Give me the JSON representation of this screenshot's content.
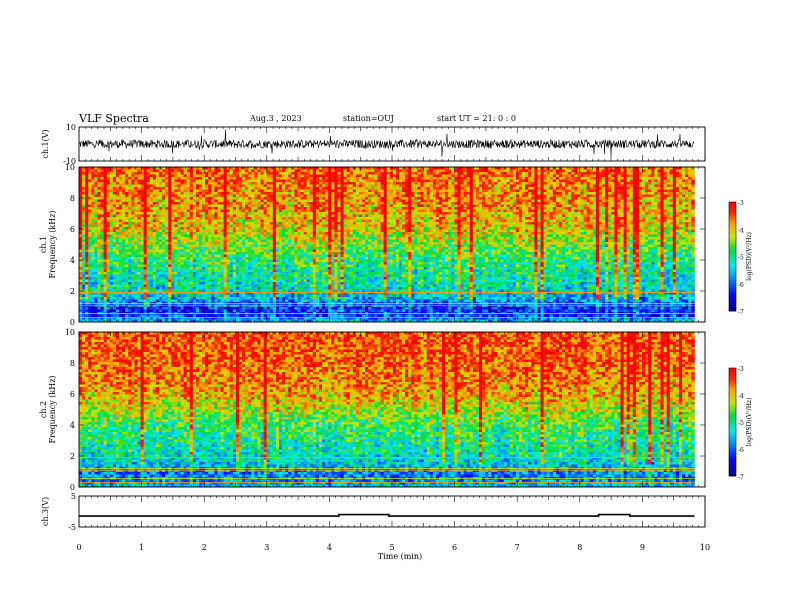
{
  "header": {
    "title": "VLF Spectra",
    "date": "Aug.3  , 2023",
    "station": "station=OUJ",
    "start_ut": "start  UT  =   21: 0  : 0"
  },
  "chart_data": [
    {
      "type": "line",
      "panel": "ch1-waveform",
      "ylabel": "ch.1(V)",
      "ylim": [
        -10,
        10
      ],
      "yticks": [
        "10",
        "-10"
      ],
      "xlim": [
        0,
        10
      ],
      "x": [
        0,
        0.5,
        1,
        1.5,
        2,
        2.5,
        3,
        3.5,
        4,
        4.5,
        5,
        5.5,
        6,
        6.5,
        7,
        7.5,
        8,
        8.5,
        9,
        9.5,
        9.83
      ],
      "values": [
        0,
        0,
        0,
        0,
        0,
        0,
        0,
        0,
        0,
        0,
        0,
        0,
        0,
        0,
        0,
        0,
        0,
        0,
        0,
        0,
        0
      ],
      "envelope": 2.5,
      "color": "#000000"
    },
    {
      "type": "heatmap",
      "panel": "ch1-spectrogram",
      "ylabel": "ch.1\nFrequency (kHz)",
      "xlim": [
        0,
        10
      ],
      "ylim": [
        0,
        10
      ],
      "yticks": [
        "0",
        "2",
        "4",
        "6",
        "8",
        "10"
      ],
      "data_end_min": 9.83,
      "colorbar": {
        "label": "log(PSD)(V²/Hz)",
        "range": [
          -7,
          -3
        ],
        "ticks": [
          "-3",
          "-4",
          "-5",
          "-6",
          "-7"
        ]
      },
      "profile_kHz": [
        0,
        0.5,
        1,
        1.5,
        2,
        3,
        4,
        5,
        6,
        7,
        8,
        9,
        10
      ],
      "profile_logPSD": [
        -5.5,
        -6.3,
        -6.2,
        -5.6,
        -5.3,
        -5.1,
        -4.9,
        -4.5,
        -4.1,
        -3.9,
        -3.8,
        -3.7,
        -3.6
      ]
    },
    {
      "type": "heatmap",
      "panel": "ch2-spectrogram",
      "ylabel": "ch.2\nFrequency (kHz)",
      "xlim": [
        0,
        10
      ],
      "ylim": [
        0,
        10
      ],
      "yticks": [
        "0",
        "2",
        "4",
        "6",
        "8",
        "10"
      ],
      "data_end_min": 9.83,
      "colorbar": {
        "label": "log(PSD)(V²/Hz)",
        "range": [
          -7,
          -3
        ],
        "ticks": [
          "-3",
          "-4",
          "-5",
          "-6",
          "-7"
        ]
      },
      "profile_kHz": [
        0,
        0.5,
        1,
        1.5,
        2,
        3,
        4,
        5,
        6,
        7,
        8,
        9,
        10
      ],
      "profile_logPSD": [
        -5.3,
        -5.9,
        -5.8,
        -5.4,
        -5.2,
        -5.0,
        -4.8,
        -4.3,
        -3.9,
        -3.7,
        -3.6,
        -3.5,
        -3.5
      ]
    },
    {
      "type": "line",
      "panel": "ch3-signal",
      "ylabel": "ch.3(V)",
      "ylim": [
        -5,
        5
      ],
      "yticks": [
        "5",
        "-5"
      ],
      "xlim": [
        0,
        10
      ],
      "xlabel": "Time  (min)",
      "xticks": [
        "0",
        "1",
        "2",
        "3",
        "4",
        "5",
        "6",
        "7",
        "8",
        "9",
        "10"
      ],
      "baseline_value": -1.5,
      "high_value": -1.0,
      "high_intervals": [
        [
          4.15,
          4.95
        ],
        [
          8.3,
          8.8
        ]
      ],
      "data_end_min": 9.83,
      "color": "#000000"
    }
  ],
  "colors": {
    "axis": "#000000",
    "background": "#ffffff"
  }
}
